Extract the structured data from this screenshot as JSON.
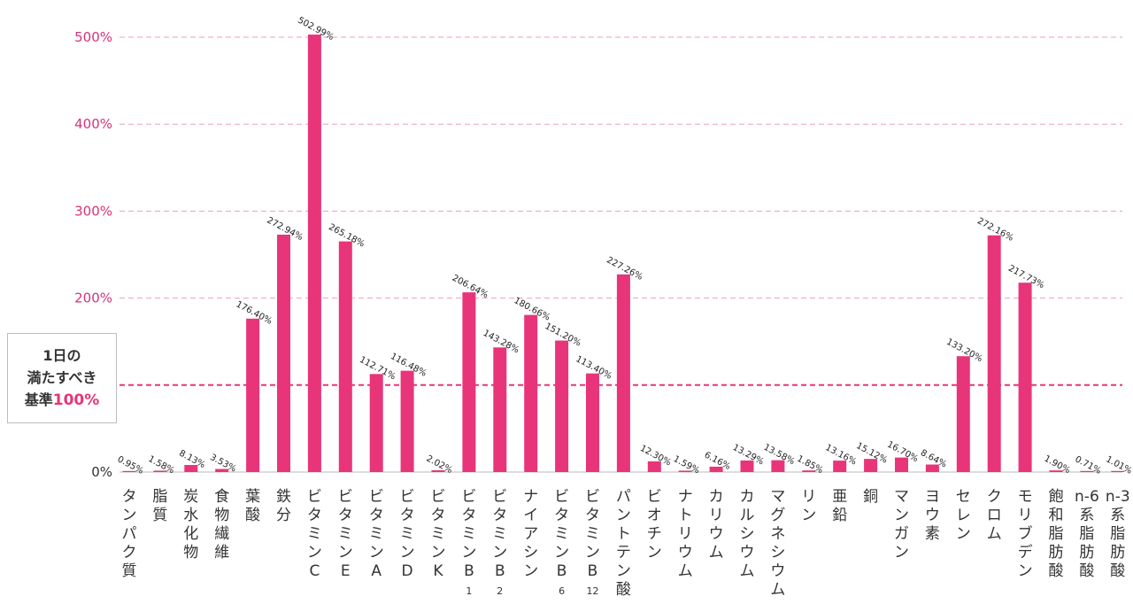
{
  "chart_data": {
    "type": "bar",
    "ylim": [
      0,
      520
    ],
    "yticks": [
      0,
      100,
      200,
      300,
      400,
      500
    ],
    "ytick_labels": [
      "0%",
      "",
      "200%",
      "300%",
      "400%",
      "500%"
    ],
    "grid": "dashed horizontal",
    "reference_line": {
      "value": 100,
      "lines": [
        "1日の",
        "満たすべき",
        "基準"
      ],
      "pct": "100%"
    },
    "bar_color": "#e8357a",
    "categories": [
      "タンパク質",
      "脂質",
      "炭水化物",
      "食物繊維",
      "葉酸",
      "鉄分",
      "ビタミンC",
      "ビタミンE",
      "ビタミンA",
      "ビタミンD",
      "ビタミンK",
      "ビタミンB1",
      "ビタミンB2",
      "ナイアシン",
      "ビタミンB6",
      "ビタミンB12",
      "パントテン酸",
      "ビオチン",
      "ナトリウム",
      "カリウム",
      "カルシウム",
      "マグネシウム",
      "リン",
      "亜鉛",
      "銅",
      "マンガン",
      "ヨウ素",
      "セレン",
      "クロム",
      "モリブデン",
      "飽和脂肪酸",
      "n-6系脂肪酸",
      "n-3系脂肪酸"
    ],
    "values": [
      0.95,
      1.58,
      8.13,
      3.53,
      176.4,
      272.94,
      502.99,
      265.18,
      112.71,
      116.48,
      2.02,
      206.64,
      143.28,
      180.66,
      151.2,
      113.4,
      227.26,
      12.3,
      1.59,
      6.16,
      13.29,
      13.58,
      1.85,
      13.16,
      15.12,
      16.7,
      8.64,
      133.2,
      272.16,
      217.73,
      1.9,
      0.71,
      1.01
    ],
    "value_labels": [
      "0.95%",
      "1.58%",
      "8.13%",
      "3.53%",
      "176.40%",
      "272.94%",
      "502.99%",
      "265.18%",
      "112.71%",
      "116.48%",
      "2.02%",
      "206.64%",
      "143.28%",
      "180.66%",
      "151.20%",
      "113.40%",
      "227.26%",
      "12.30%",
      "1.59%",
      "6.16%",
      "13.29%",
      "13.58%",
      "1.85%",
      "13.16%",
      "15.12%",
      "16.70%",
      "8.64%",
      "133.20%",
      "272.16%",
      "217.73%",
      "1.90%",
      "0.71%",
      "1.01%"
    ]
  }
}
